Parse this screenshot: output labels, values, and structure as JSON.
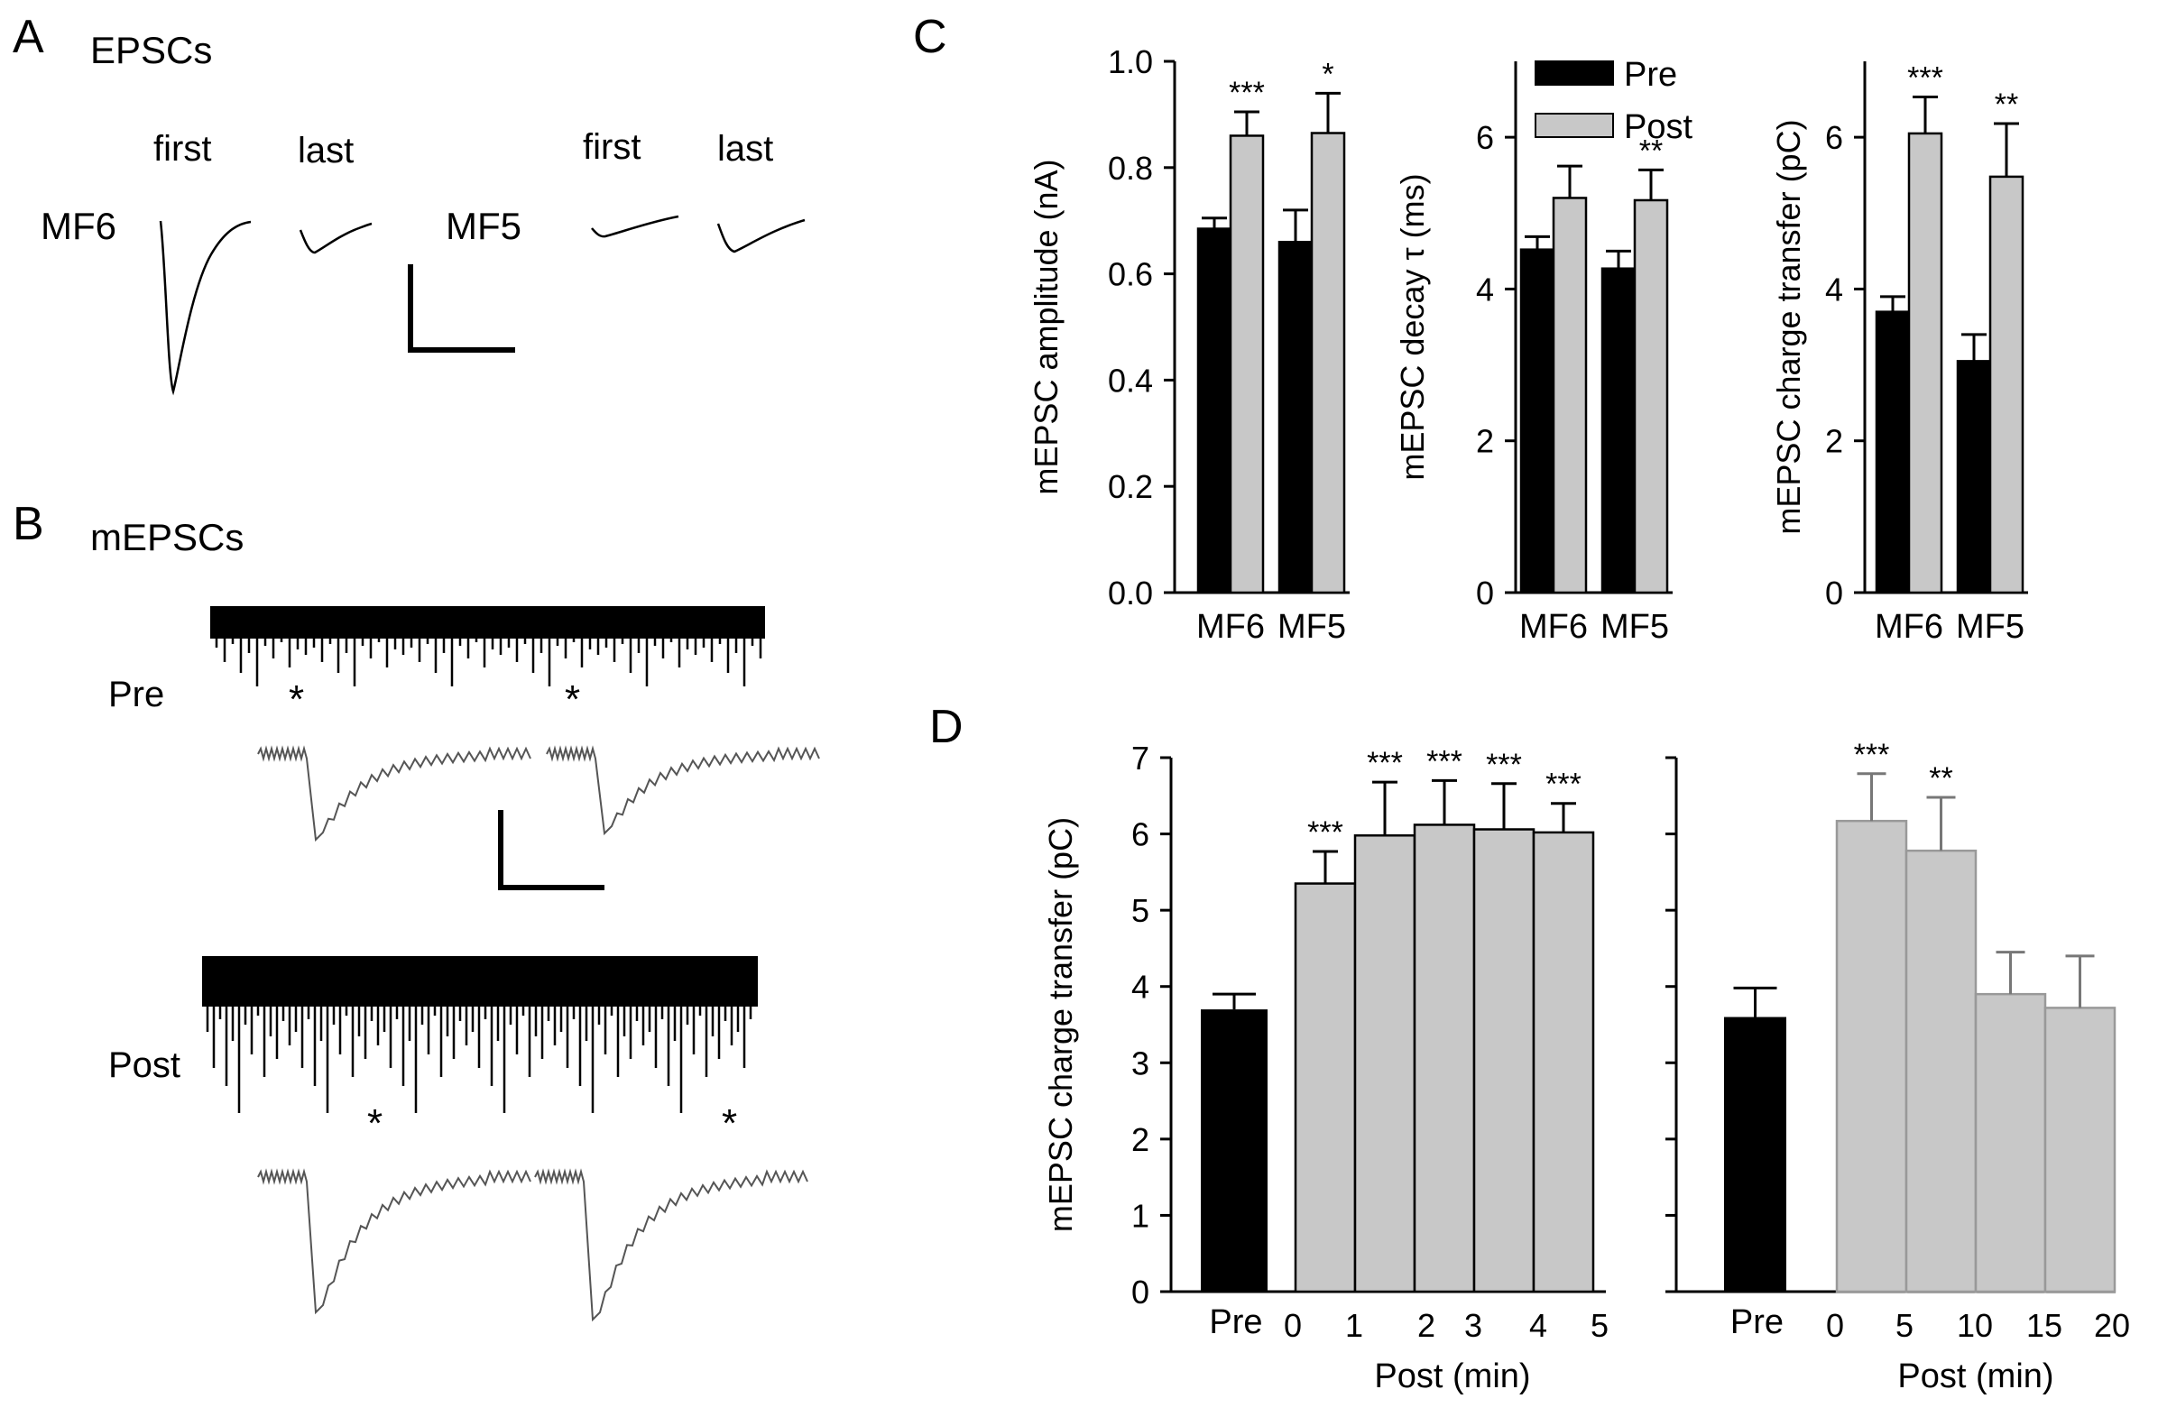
{
  "panels": {
    "a": {
      "letter": "A",
      "title": "EPSCs",
      "first": "first",
      "last": "last",
      "mf6": "MF6",
      "mf5": "MF5"
    },
    "b": {
      "letter": "B",
      "title": "mEPSCs",
      "pre": "Pre",
      "post": "Post",
      "star": "*"
    },
    "c": {
      "letter": "C"
    },
    "d": {
      "letter": "D"
    }
  },
  "chart_data": [
    {
      "id": "C1",
      "type": "bar",
      "ylabel": "mEPSC amplitude (nA)",
      "categories": [
        "MF6",
        "MF5"
      ],
      "ylim": [
        0,
        1.0
      ],
      "yticks": [
        "0.0",
        "0.2",
        "0.4",
        "0.6",
        "0.8",
        "1.0"
      ],
      "yticks_values": [
        0,
        0.2,
        0.4,
        0.6,
        0.8,
        1.0
      ],
      "series": [
        {
          "name": "Pre",
          "color": "#000000",
          "values": [
            0.685,
            0.66
          ],
          "errors": [
            0.02,
            0.06
          ]
        },
        {
          "name": "Post",
          "color": "#c8c8c8",
          "values": [
            0.86,
            0.865
          ],
          "errors": [
            0.045,
            0.075
          ]
        }
      ],
      "significance": [
        "***",
        "*"
      ]
    },
    {
      "id": "C2",
      "type": "bar",
      "ylabel": "mEPSC decay τ (ms)",
      "categories": [
        "MF6",
        "MF5"
      ],
      "ylim": [
        0,
        7
      ],
      "yticks": [
        "0",
        "2",
        "4",
        "6"
      ],
      "yticks_values": [
        0,
        2,
        4,
        6
      ],
      "legend": [
        "Pre",
        "Post"
      ],
      "series": [
        {
          "name": "Pre",
          "color": "#000000",
          "values": [
            4.52,
            4.27
          ],
          "errors": [
            0.17,
            0.23
          ]
        },
        {
          "name": "Post",
          "color": "#c8c8c8",
          "values": [
            5.2,
            5.17
          ],
          "errors": [
            0.42,
            0.4
          ]
        }
      ],
      "significance": [
        "",
        "**"
      ]
    },
    {
      "id": "C3",
      "type": "bar",
      "ylabel": "mEPSC charge transfer (pC)",
      "categories": [
        "MF6",
        "MF5"
      ],
      "ylim": [
        0,
        7
      ],
      "yticks": [
        "0",
        "2",
        "4",
        "6"
      ],
      "yticks_values": [
        0,
        2,
        4,
        6
      ],
      "series": [
        {
          "name": "Pre",
          "color": "#000000",
          "values": [
            3.7,
            3.05
          ],
          "errors": [
            0.2,
            0.35
          ]
        },
        {
          "name": "Post",
          "color": "#c8c8c8",
          "values": [
            6.05,
            5.48
          ],
          "errors": [
            0.48,
            0.7
          ]
        }
      ],
      "significance": [
        "***",
        "**"
      ]
    },
    {
      "id": "D1",
      "type": "bar",
      "ylabel": "mEPSC charge transfer (pC)",
      "xlabel": "Post (min)",
      "ylim": [
        0,
        7
      ],
      "yticks": [
        "0",
        "1",
        "2",
        "3",
        "4",
        "5",
        "6",
        "7"
      ],
      "yticks_values": [
        0,
        1,
        2,
        3,
        4,
        5,
        6,
        7
      ],
      "pre": {
        "label": "Pre",
        "value": 3.7,
        "error": 0.2
      },
      "post_ticks": [
        "0",
        "1",
        "2",
        "3",
        "4",
        "5"
      ],
      "post_values": [
        5.35,
        5.98,
        6.12,
        6.06,
        6.02
      ],
      "post_errors": [
        0.42,
        0.7,
        0.58,
        0.6,
        0.38
      ],
      "significance": [
        "***",
        "***",
        "***",
        "***",
        "***"
      ]
    },
    {
      "id": "D2",
      "type": "bar",
      "xlabel": "Post (min)",
      "ylim": [
        0,
        7
      ],
      "yticks_values": [
        0,
        1,
        2,
        3,
        4,
        5,
        6,
        7
      ],
      "pre": {
        "label": "Pre",
        "value": 3.6,
        "error": 0.38
      },
      "post_ticks": [
        "0",
        "5",
        "10",
        "15",
        "20"
      ],
      "post_values": [
        6.17,
        5.78,
        3.9,
        3.72
      ],
      "post_errors": [
        0.62,
        0.7,
        0.55,
        0.68
      ],
      "significance": [
        "***",
        "**",
        "",
        ""
      ]
    }
  ]
}
